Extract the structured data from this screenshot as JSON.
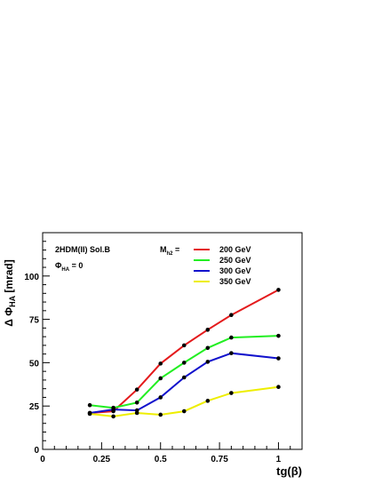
{
  "chart_data": {
    "type": "line",
    "title": "",
    "xlabel": "tg(β)",
    "ylabel": "Δ Φ_HA  [mrad]",
    "xlim": [
      0,
      1.1
    ],
    "ylim": [
      0,
      125
    ],
    "x_ticks": [
      0,
      0.25,
      0.5,
      0.75,
      1
    ],
    "x_tick_labels": [
      "0",
      "0.25",
      "0.5",
      "0.75",
      "1"
    ],
    "y_ticks": [
      0,
      25,
      50,
      75,
      100
    ],
    "y_tick_labels": [
      "0",
      "25",
      "50",
      "75",
      "100"
    ],
    "x": [
      0.2,
      0.3,
      0.4,
      0.5,
      0.6,
      0.7,
      0.8,
      1.0
    ],
    "annotations": {
      "solution": "2HDM(II)  Sol.B",
      "phase_base": "Φ",
      "phase_sub": "HA",
      "phase_rest": " = 0"
    },
    "legend": {
      "header_base": "M",
      "header_sub": "h2",
      "header_rest": " =",
      "placement": "top-right"
    },
    "series": [
      {
        "name": "200 GeV",
        "color": "#e41a1c",
        "values": [
          21,
          22,
          34.5,
          49.5,
          60,
          69,
          77.5,
          92
        ]
      },
      {
        "name": "250 GeV",
        "color": "#22ee22",
        "values": [
          25.5,
          24,
          27,
          41,
          50,
          58.5,
          64.5,
          65.5
        ]
      },
      {
        "name": "300 GeV",
        "color": "#1111cc",
        "values": [
          21,
          23,
          22.5,
          30,
          41.5,
          50.5,
          55.5,
          52.5
        ]
      },
      {
        "name": "350 GeV",
        "color": "#eeee00",
        "values": [
          20.5,
          19,
          21,
          20,
          22,
          28,
          32.5,
          36
        ]
      }
    ]
  }
}
